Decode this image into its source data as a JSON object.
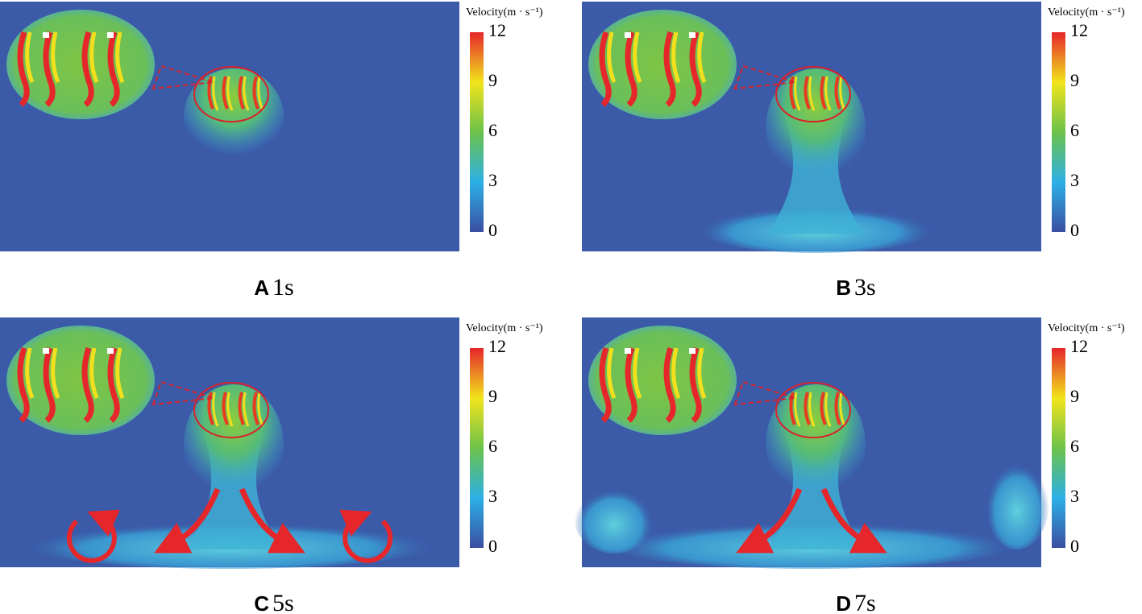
{
  "panels": [
    {
      "letter": "A",
      "time": "1s",
      "colorbar": {
        "title": "Velocity(m · s⁻¹)",
        "ticks": [
          0,
          3,
          6,
          9,
          12
        ]
      }
    },
    {
      "letter": "B",
      "time": "3s",
      "colorbar": {
        "title": "Velocity(m · s⁻¹)",
        "ticks": [
          0,
          3,
          6,
          9,
          12
        ]
      }
    },
    {
      "letter": "C",
      "time": "5s",
      "colorbar": {
        "title": "Velocity(m · s⁻¹)",
        "ticks": [
          0,
          3,
          6,
          9,
          12
        ]
      }
    },
    {
      "letter": "D",
      "time": "7s",
      "colorbar": {
        "title": "Velocity(m · s⁻¹)",
        "ticks": [
          0,
          3,
          6,
          9,
          12
        ]
      }
    }
  ]
}
